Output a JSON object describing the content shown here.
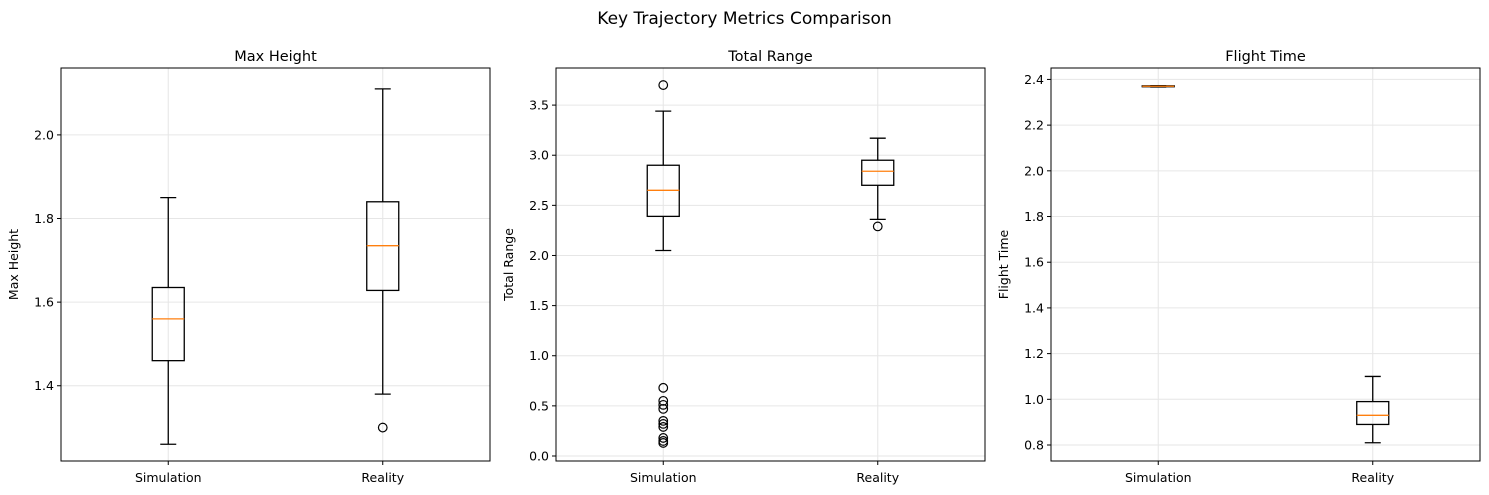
{
  "figure": {
    "title": "Key Trajectory Metrics Comparison"
  },
  "chart_data": [
    {
      "type": "box",
      "title": "Max Height",
      "xlabel": "",
      "ylabel": "Max Height",
      "categories": [
        "Simulation",
        "Reality"
      ],
      "ylim": [
        1.22,
        2.16
      ],
      "yticks": [
        1.4,
        1.6,
        1.8,
        2.0
      ],
      "ytick_labels": [
        "1.4",
        "1.6",
        "1.8",
        "2.0"
      ],
      "grid": true,
      "colors": {
        "box": "#000000",
        "median": "#ff7f0e",
        "grid": "#e6e6e6"
      },
      "boxes": [
        {
          "name": "Simulation",
          "whislo": 1.26,
          "q1": 1.46,
          "med": 1.56,
          "q3": 1.635,
          "whishi": 1.85,
          "fliers": []
        },
        {
          "name": "Reality",
          "whislo": 1.38,
          "q1": 1.628,
          "med": 1.735,
          "q3": 1.84,
          "whishi": 2.11,
          "fliers": [
            1.3
          ]
        }
      ]
    },
    {
      "type": "box",
      "title": "Total Range",
      "xlabel": "",
      "ylabel": "Total Range",
      "categories": [
        "Simulation",
        "Reality"
      ],
      "ylim": [
        -0.05,
        3.87
      ],
      "yticks": [
        0.0,
        0.5,
        1.0,
        1.5,
        2.0,
        2.5,
        3.0,
        3.5
      ],
      "ytick_labels": [
        "0.0",
        "0.5",
        "1.0",
        "1.5",
        "2.0",
        "2.5",
        "3.0",
        "3.5"
      ],
      "grid": true,
      "colors": {
        "box": "#000000",
        "median": "#ff7f0e",
        "grid": "#e6e6e6"
      },
      "boxes": [
        {
          "name": "Simulation",
          "whislo": 2.05,
          "q1": 2.39,
          "med": 2.65,
          "q3": 2.9,
          "whishi": 3.44,
          "fliers": [
            3.7,
            0.68,
            0.55,
            0.51,
            0.47,
            0.35,
            0.32,
            0.29,
            0.18,
            0.15,
            0.13
          ]
        },
        {
          "name": "Reality",
          "whislo": 2.36,
          "q1": 2.7,
          "med": 2.84,
          "q3": 2.95,
          "whishi": 3.17,
          "fliers": [
            2.29
          ]
        }
      ]
    },
    {
      "type": "box",
      "title": "Flight Time",
      "xlabel": "",
      "ylabel": "Flight Time",
      "categories": [
        "Simulation",
        "Reality"
      ],
      "ylim": [
        0.73,
        2.45
      ],
      "yticks": [
        0.8,
        1.0,
        1.2,
        1.4,
        1.6,
        1.8,
        2.0,
        2.2,
        2.4
      ],
      "ytick_labels": [
        "0.8",
        "1.0",
        "1.2",
        "1.4",
        "1.6",
        "1.8",
        "2.0",
        "2.2",
        "2.4"
      ],
      "grid": true,
      "colors": {
        "box": "#000000",
        "median": "#ff7f0e",
        "grid": "#e6e6e6"
      },
      "boxes": [
        {
          "name": "Simulation",
          "whislo": 2.367,
          "q1": 2.368,
          "med": 2.37,
          "q3": 2.372,
          "whishi": 2.373,
          "fliers": []
        },
        {
          "name": "Reality",
          "whislo": 0.81,
          "q1": 0.89,
          "med": 0.93,
          "q3": 0.99,
          "whishi": 1.1,
          "fliers": []
        }
      ]
    }
  ]
}
